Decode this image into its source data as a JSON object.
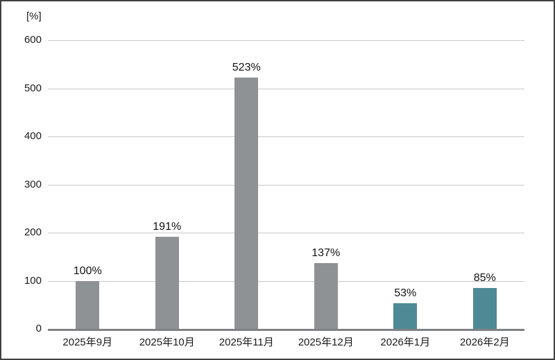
{
  "chart_data": {
    "type": "bar",
    "title": "",
    "unit_label": "[%]",
    "categories": [
      "2025年9月",
      "2025年10月",
      "2025年11月",
      "2025年12月",
      "2026年1月",
      "2026年2月"
    ],
    "values": [
      100,
      191,
      523,
      137,
      53,
      85
    ],
    "value_labels": [
      "100%",
      "191%",
      "523%",
      "137%",
      "53%",
      "85%"
    ],
    "bar_colors": [
      "#8f9295",
      "#8f9295",
      "#8f9295",
      "#8f9295",
      "#4e8a95",
      "#4e8a95"
    ],
    "xlabel": "",
    "ylabel": "[%]",
    "ylim": [
      0,
      600
    ],
    "yticks": [
      0,
      100,
      200,
      300,
      400,
      500,
      600
    ],
    "grid": true,
    "legend_position": "none"
  },
  "colors": {
    "bar_gray": "#8f9295",
    "bar_teal": "#4e8a95",
    "gridline": "#c9c9c9",
    "axis_line": "#7f8183",
    "frame_border": "#414141",
    "text": "#1a1a1a",
    "background": "#ffffff"
  }
}
